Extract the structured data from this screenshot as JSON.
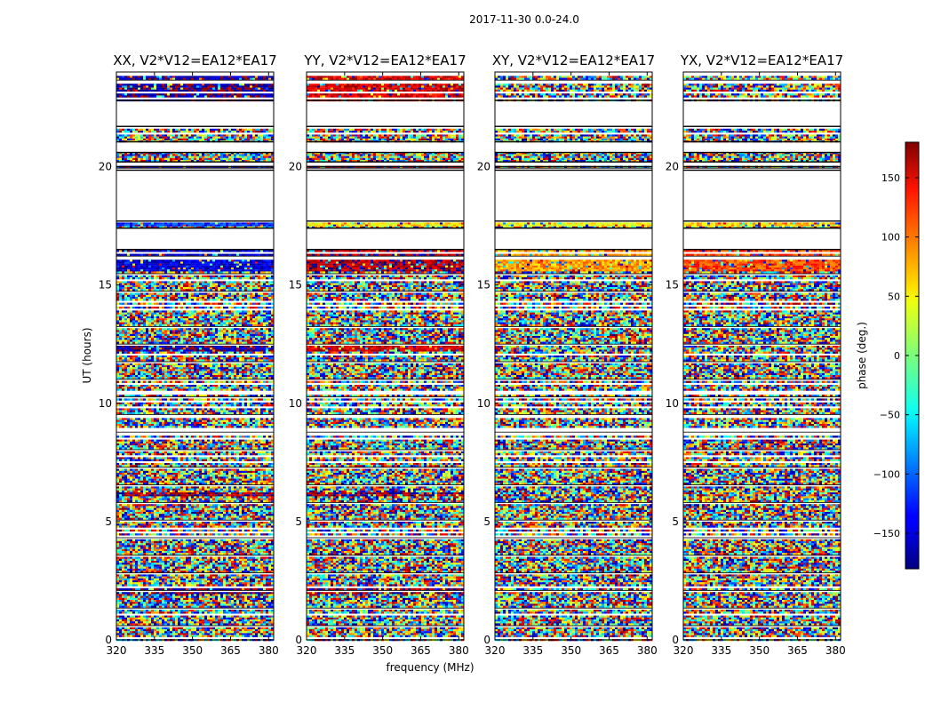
{
  "chart_data": {
    "type": "heatmap",
    "suptitle": "2017-11-30 0.0-24.0",
    "xlabel": "frequency (MHz)",
    "ylabel": "UT (hours)",
    "xlim": [
      320,
      382
    ],
    "ylim": [
      0,
      24
    ],
    "x_ticks": [
      320,
      335,
      350,
      365,
      380
    ],
    "y_ticks": [
      0,
      5,
      10,
      15,
      20
    ],
    "panels": [
      {
        "title": "XX, V2*V12=EA12*EA17",
        "polarization": "XX"
      },
      {
        "title": "YY, V2*V12=EA12*EA17",
        "polarization": "YY"
      },
      {
        "title": "XY, V2*V12=EA12*EA17",
        "polarization": "XY"
      },
      {
        "title": "YX, V2*V12=EA12*EA17",
        "polarization": "YX"
      }
    ],
    "colorbar": {
      "label": "phase (deg.)",
      "range": [
        -180,
        180
      ],
      "ticks": [
        -150,
        -100,
        -50,
        0,
        50,
        100,
        150
      ],
      "tick_labels": [
        "−150",
        "−100",
        "−50",
        "0",
        "50",
        "100",
        "150"
      ],
      "colormap": "jet"
    },
    "data_gaps_ut": [
      [
        21.7,
        22.8
      ],
      [
        20.6,
        21.05
      ],
      [
        20.0,
        20.2
      ],
      [
        17.7,
        19.85
      ],
      [
        16.5,
        17.4
      ]
    ],
    "coherent_phase_bands_ut": [
      {
        "ut": [
          22.3,
          23.9
        ],
        "XX": -170,
        "YY": 150,
        "XY": null,
        "YX": null
      },
      {
        "ut": [
          19.85,
          20.0
        ],
        "XX": -160,
        "YY": 160,
        "XY": null,
        "YX": null
      },
      {
        "ut": [
          17.45,
          17.62
        ],
        "XX": -120,
        "YY": 50,
        "XY": 40,
        "YX": 60
      },
      {
        "ut": [
          15.6,
          16.45
        ],
        "XX": -150,
        "YY": 165,
        "XY": 80,
        "YX": 110
      },
      {
        "ut": [
          12.2,
          12.5
        ],
        "XX": -165,
        "YY": 150,
        "XY": null,
        "YX": null
      },
      {
        "ut": [
          6.05,
          6.25
        ],
        "XX": 170,
        "YY": 170,
        "XY": null,
        "YX": null
      },
      {
        "ut": [
          1.95,
          2.15
        ],
        "XX": -175,
        "YY": 170,
        "XY": null,
        "YX": null
      }
    ]
  }
}
